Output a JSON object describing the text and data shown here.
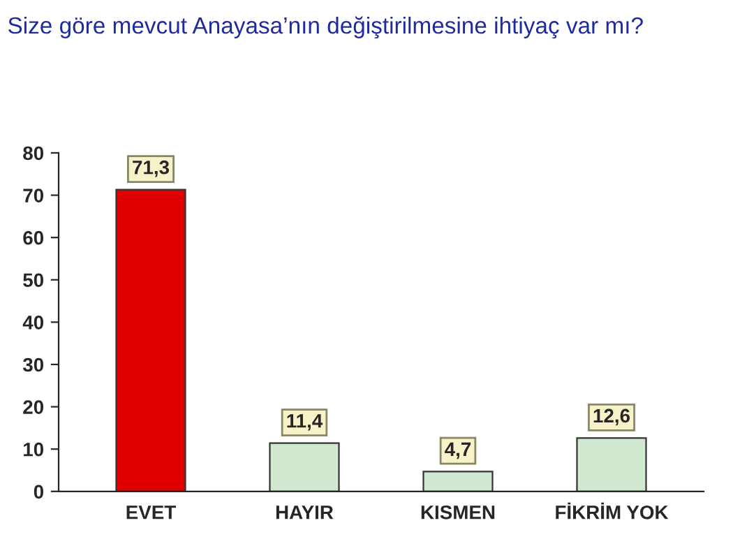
{
  "chart_data": {
    "type": "bar",
    "title": "Size göre mevcut Anayasa’nın değiştirilmesine ihtiyaç var mı?",
    "categories": [
      "EVET",
      "HAYIR",
      "KISMEN",
      "FİKRİM YOK"
    ],
    "values": [
      71.3,
      11.4,
      4.7,
      12.6
    ],
    "colors": [
      "#e00000",
      "#cfe8cf",
      "#cfe8cf",
      "#cfe8cf"
    ],
    "value_labels": [
      "71,3",
      "11,4",
      "4,7",
      "12,6"
    ],
    "ylim": [
      0,
      80
    ],
    "yticks": [
      0,
      10,
      20,
      30,
      40,
      50,
      60,
      70,
      80
    ],
    "grid": false
  }
}
